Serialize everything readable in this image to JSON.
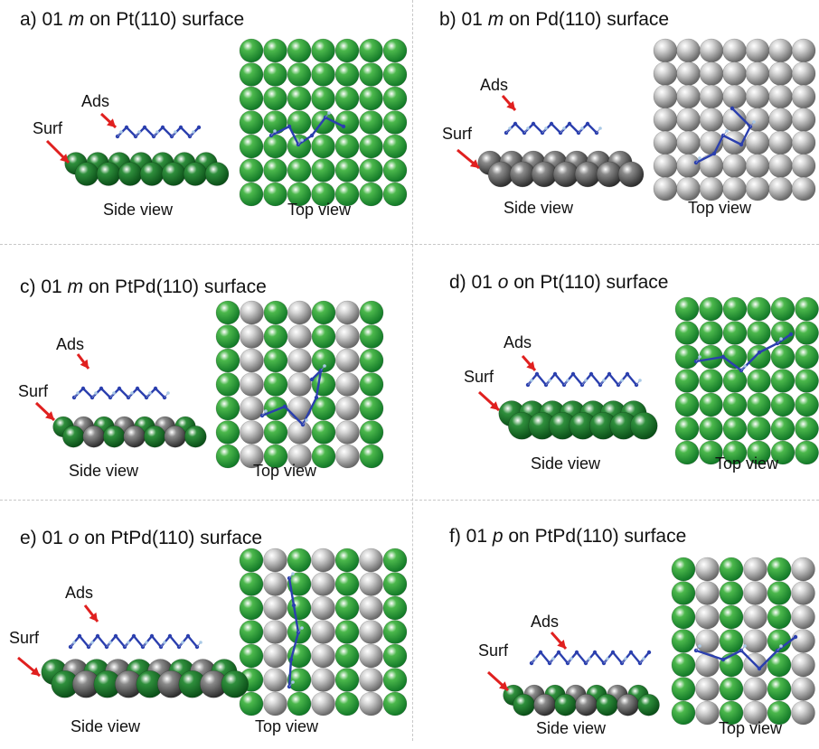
{
  "panels": [
    {
      "prefix": "a) 01 ",
      "ital": "m",
      "suffix": " on Pt(110) surface",
      "ads": "Ads",
      "surf": "Surf",
      "side": "Side view",
      "top": "Top view",
      "surface": "pt"
    },
    {
      "prefix": "b) 01 ",
      "ital": "m",
      "suffix": " on Pd(110) surface",
      "ads": "Ads",
      "surf": "Surf",
      "side": "Side view",
      "top": "Top view",
      "surface": "pd"
    },
    {
      "prefix": "c) 01 ",
      "ital": "m",
      "suffix": " on PtPd(110) surface",
      "ads": "Ads",
      "surf": "Surf",
      "side": "Side view",
      "top": "Top view",
      "surface": "ptpd"
    },
    {
      "prefix": "d) 01 ",
      "ital": "o",
      "suffix": " on Pt(110) surface",
      "ads": "Ads",
      "surf": "Surf",
      "side": "Side view",
      "top": "Top view",
      "surface": "pt"
    },
    {
      "prefix": "e) 01 ",
      "ital": "o",
      "suffix": " on PtPd(110) surface",
      "ads": "Ads",
      "surf": "Surf",
      "side": "Side view",
      "top": "Top view",
      "surface": "ptpd"
    },
    {
      "prefix": "f) 01 ",
      "ital": "p",
      "suffix": " on PtPd(110) surface",
      "ads": "Ads",
      "surf": "Surf",
      "side": "Side view",
      "top": "Top view",
      "surface": "ptpd"
    }
  ],
  "colors": {
    "pt_light": "#4cb84c",
    "pt_dark": "#137a28",
    "pd_light": "#a6a6a6",
    "pd_dark": "#5a5a5a",
    "molecule": "#2b3fae",
    "hydrogen": "#a9c9e6",
    "arrow": "#e0201f"
  }
}
